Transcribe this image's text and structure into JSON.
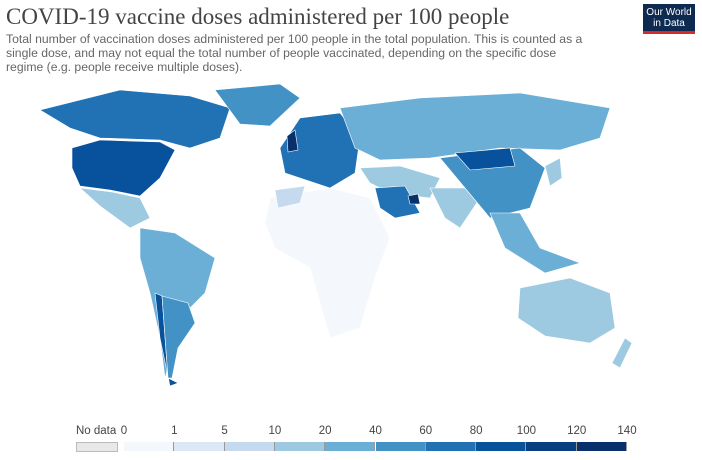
{
  "title": "COVID-19 vaccine doses administered per 100 people",
  "subtitle": "Total number of vaccination doses administered per 100 people in the total population. This is counted as a single dose, and may not equal the total number of people vaccinated, depending on the specific dose regime (e.g. people receive multiple doses).",
  "logo": {
    "line1": "Our World",
    "line2": "in Data",
    "bg": "#0f2a51",
    "accent": "#d42b2b"
  },
  "legend": {
    "no_data_label": "No data",
    "no_data_color": "#e8e8e8",
    "ticks": [
      "0",
      "1",
      "5",
      "10",
      "20",
      "40",
      "60",
      "80",
      "100",
      "120",
      "140"
    ],
    "colors": [
      "#f4f8fd",
      "#dbe8f5",
      "#c5daee",
      "#9ecae1",
      "#6baed6",
      "#4292c6",
      "#2171b5",
      "#08519c",
      "#083f80",
      "#08306b"
    ]
  },
  "map": {
    "regions": [
      {
        "name": "north-america",
        "color": "#2171b5"
      },
      {
        "name": "usa",
        "color": "#08519c"
      },
      {
        "name": "greenland",
        "color": "#4292c6"
      },
      {
        "name": "mexico",
        "color": "#9ecae1"
      },
      {
        "name": "south-america",
        "color": "#6baed6"
      },
      {
        "name": "chile",
        "color": "#08519c"
      },
      {
        "name": "argentina",
        "color": "#4292c6"
      },
      {
        "name": "europe",
        "color": "#2171b5"
      },
      {
        "name": "uk",
        "color": "#08306b"
      },
      {
        "name": "russia",
        "color": "#6baed6"
      },
      {
        "name": "africa",
        "color": "#f4f8fd"
      },
      {
        "name": "morocco",
        "color": "#c5daee"
      },
      {
        "name": "middle-east",
        "color": "#9ecae1"
      },
      {
        "name": "saudi-arabia",
        "color": "#2171b5"
      },
      {
        "name": "uae",
        "color": "#08306b"
      },
      {
        "name": "india",
        "color": "#9ecae1"
      },
      {
        "name": "china",
        "color": "#4292c6"
      },
      {
        "name": "mongolia",
        "color": "#08519c"
      },
      {
        "name": "southeast-asia",
        "color": "#6baed6"
      },
      {
        "name": "australia",
        "color": "#9ecae1"
      },
      {
        "name": "new-zealand",
        "color": "#9ecae1"
      },
      {
        "name": "japan",
        "color": "#9ecae1"
      }
    ]
  }
}
